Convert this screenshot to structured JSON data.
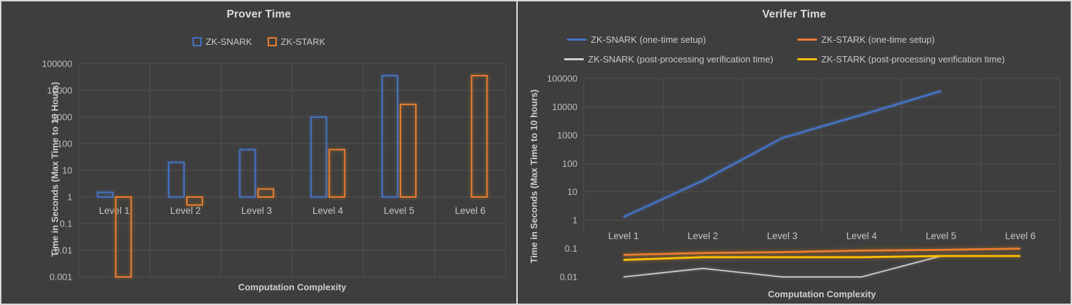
{
  "window": {
    "background": "#3e3e3e",
    "frame_border_color": "#d8d8d8",
    "gridline_color": "#515151",
    "text_color": "#c9c9c9"
  },
  "chart_data": [
    {
      "type": "bar",
      "title": "Prover Time",
      "xlabel": "Computation Complexity",
      "ylabel": "Time in Seconds (Max  Time to 10 Hours)",
      "y_scale": "log",
      "ylim": [
        0.001,
        100000
      ],
      "y_ticks": [
        "100000",
        "10000",
        "1000",
        "100",
        "10",
        "1",
        "0.1",
        "0.01",
        "0.001"
      ],
      "grid": "on",
      "legend_position": "top",
      "bar_style": "hollow-outline",
      "categories": [
        "Level 1",
        "Level 2",
        "Level 3",
        "Level 4",
        "Level 5",
        "Level 6"
      ],
      "series": [
        {
          "name": "ZK-SNARK",
          "color": "#4472C4",
          "values": [
            1.5,
            20,
            60,
            1000,
            36000,
            null
          ]
        },
        {
          "name": "ZK-STARK",
          "color": "#ED7D31",
          "values": [
            0.001,
            0.5,
            2,
            60,
            3000,
            36000
          ]
        }
      ]
    },
    {
      "type": "line",
      "title": "Verifer Time",
      "xlabel": "Computation Complexity",
      "ylabel": "Time in Seconds (Max Time  to 10 hours)",
      "y_scale": "log",
      "ylim": [
        0.01,
        100000
      ],
      "y_ticks": [
        "100000",
        "10000",
        "1000",
        "100",
        "10",
        "1",
        "0.1",
        "0.01"
      ],
      "grid": "on",
      "legend_position": "top",
      "categories": [
        "Level 1",
        "Level 2",
        "Level 3",
        "Level 4",
        "Level 5",
        "Level 6"
      ],
      "series": [
        {
          "name": "ZK-SNARK (one-time setup)",
          "color": "#4472C4",
          "values": [
            1.3,
            25,
            800,
            5200,
            36000,
            null
          ]
        },
        {
          "name": "ZK-STARK (one-time setup)",
          "color": "#ED7D31",
          "values": [
            0.06,
            0.07,
            0.075,
            0.085,
            0.09,
            0.1
          ]
        },
        {
          "name": "ZK-SNARK (post-processing verification time)",
          "color": "#CFCFCF",
          "values": [
            0.01,
            0.02,
            0.01,
            0.01,
            0.055,
            null
          ]
        },
        {
          "name": "ZK-STARK (post-processing verification time)",
          "color": "#FFC000",
          "values": [
            0.04,
            0.05,
            0.05,
            0.05,
            0.055,
            0.055
          ]
        }
      ]
    }
  ]
}
